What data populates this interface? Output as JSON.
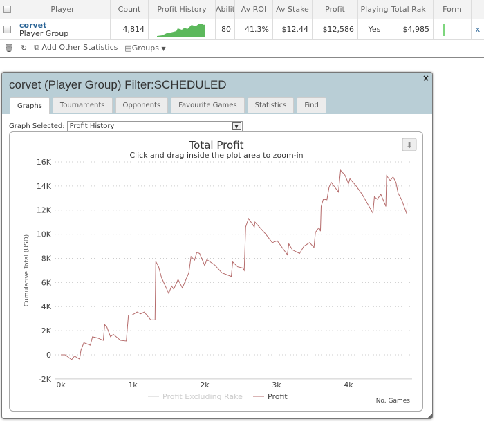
{
  "grid": {
    "columns": [
      "Player",
      "Count",
      "Profit History",
      "Ability",
      "Av ROI",
      "Av Stake",
      "Profit",
      "Playing",
      "Total Rak",
      "Form"
    ],
    "row": {
      "name": "corvet",
      "type": "Player Group",
      "count": "4,814",
      "ability": "80",
      "av_roi": "41.3%",
      "av_stake": "$12.44",
      "profit": "$12,586",
      "playing": "Yes",
      "total_rake": "$4,985",
      "remove": "x"
    },
    "sparkline_color": "#5cb85c"
  },
  "toolbar": {
    "add_stats": "Add Other Statistics",
    "groups": "Groups"
  },
  "dialog": {
    "title": "corvet (Player Group) Filter:SCHEDULED",
    "close": "×",
    "tabs": [
      "Graphs",
      "Tournaments",
      "Opponents",
      "Favourite Games",
      "Statistics",
      "Find"
    ],
    "active_tab": "Graphs",
    "graph_label": "Graph Selected:",
    "graph_value": "Profit History"
  },
  "chart_data": {
    "type": "line",
    "title": "Total Profit",
    "subtitle": "Click and drag inside the plot area to zoom-in",
    "xlabel": "No. Games",
    "ylabel": "Cumulative Total (USD)",
    "xlim": [
      0,
      4850
    ],
    "ylim": [
      -2000,
      16000
    ],
    "xticks": [
      {
        "v": 0,
        "l": "0k"
      },
      {
        "v": 1000,
        "l": "1k"
      },
      {
        "v": 2000,
        "l": "2k"
      },
      {
        "v": 3000,
        "l": "3k"
      },
      {
        "v": 4000,
        "l": "4k"
      }
    ],
    "yticks": [
      {
        "v": -2000,
        "l": "-2K"
      },
      {
        "v": 0,
        "l": "0"
      },
      {
        "v": 2000,
        "l": "2K"
      },
      {
        "v": 4000,
        "l": "4K"
      },
      {
        "v": 6000,
        "l": "6K"
      },
      {
        "v": 8000,
        "l": "8K"
      },
      {
        "v": 10000,
        "l": "10K"
      },
      {
        "v": 12000,
        "l": "12K"
      },
      {
        "v": 14000,
        "l": "14K"
      },
      {
        "v": 16000,
        "l": "16K"
      }
    ],
    "grid": true,
    "legend_position": "bottom",
    "series": [
      {
        "name": "Profit Excluding Rake",
        "color": "#cccccc",
        "hidden": true,
        "x": [],
        "y": []
      },
      {
        "name": "Profit",
        "color": "#b56b6b",
        "x": [
          0,
          60,
          150,
          190,
          260,
          280,
          320,
          410,
          440,
          510,
          590,
          610,
          640,
          690,
          730,
          830,
          910,
          940,
          990,
          1060,
          1110,
          1160,
          1250,
          1310,
          1320,
          1360,
          1400,
          1500,
          1540,
          1570,
          1630,
          1690,
          1740,
          1780,
          1810,
          1860,
          1890,
          1930,
          2000,
          2030,
          2140,
          2240,
          2370,
          2390,
          2460,
          2530,
          2550,
          2570,
          2610,
          2690,
          2700,
          2850,
          2940,
          3010,
          3150,
          3170,
          3220,
          3320,
          3380,
          3460,
          3520,
          3540,
          3590,
          3610,
          3620,
          3650,
          3700,
          3730,
          3760,
          3860,
          3890,
          3950,
          4000,
          4020,
          4100,
          4190,
          4340,
          4360,
          4400,
          4450,
          4520,
          4530,
          4580,
          4620,
          4660,
          4690,
          4740,
          4810,
          4814
        ],
        "y": [
          0,
          0,
          -400,
          -100,
          -350,
          400,
          1000,
          800,
          1500,
          1400,
          1200,
          2500,
          2300,
          1500,
          1700,
          1200,
          1150,
          3300,
          3300,
          3550,
          3400,
          3550,
          2900,
          2900,
          7750,
          7300,
          6400,
          5100,
          5700,
          5450,
          6250,
          5550,
          6250,
          6800,
          8150,
          7850,
          8500,
          8400,
          7400,
          7900,
          7450,
          6800,
          6500,
          7700,
          7300,
          7200,
          7000,
          10600,
          11300,
          10600,
          11000,
          10000,
          9300,
          9450,
          8300,
          9200,
          8700,
          8400,
          9000,
          9300,
          8900,
          10150,
          10550,
          10250,
          12300,
          12900,
          12850,
          13900,
          14300,
          13500,
          15300,
          14900,
          14200,
          14600,
          14050,
          13300,
          11750,
          13100,
          12900,
          13300,
          12300,
          14850,
          14450,
          14750,
          14300,
          13400,
          12850,
          11700,
          12586
        ]
      }
    ]
  }
}
